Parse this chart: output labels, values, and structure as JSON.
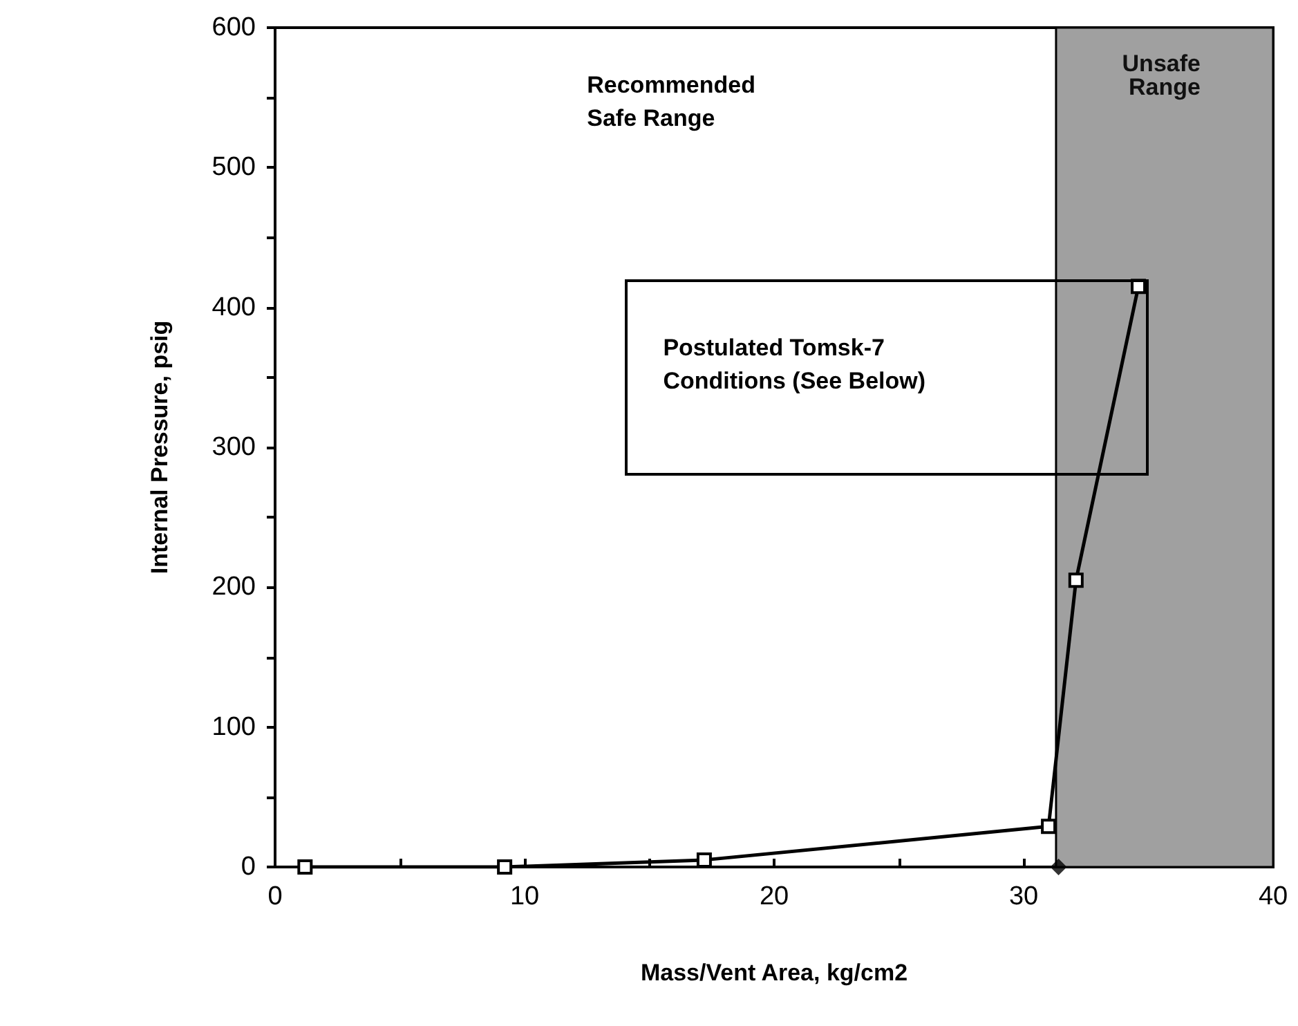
{
  "chart_data": {
    "type": "line",
    "xlabel": "Mass/Vent Area, kg/cm2",
    "ylabel": "Internal Pressure, psig",
    "series": [
      {
        "color": "#000000",
        "marker": "square",
        "x": [
          1.2,
          9.2,
          17.2,
          31.0,
          32.1,
          34.6
        ],
        "values": [
          0,
          0,
          5,
          29,
          205,
          415
        ]
      },
      {
        "type": "scatter",
        "color": "#000000",
        "marker": "diamond",
        "x": [
          31.4
        ],
        "values": [
          0
        ]
      }
    ],
    "xlim": [
      0,
      40
    ],
    "xticks": [
      0,
      {
        "value": 5,
        "label": null
      },
      10,
      {
        "value": 15,
        "label": null
      },
      20,
      {
        "value": 25,
        "label": null
      },
      30,
      {
        "value": 35,
        "label": null
      },
      40
    ],
    "ylim": [
      0,
      600
    ],
    "yticks": [
      0,
      {
        "value": 50,
        "label": null
      },
      100,
      {
        "value": 150,
        "label": null
      },
      200,
      {
        "value": 250,
        "label": null
      },
      300,
      {
        "value": 350,
        "label": null
      },
      400,
      {
        "value": 450,
        "label": null
      },
      500,
      {
        "value": 550,
        "label": null
      },
      600
    ],
    "bands": [
      {
        "axis": "x",
        "from": 31.3,
        "to": 40,
        "label": "Unsafe Range",
        "color": "#a0a0a0"
      }
    ],
    "annotations": [
      "Recommended Safe Range",
      "Postulated Tomsk-7 Conditions (See Below)"
    ],
    "grid": false
  }
}
